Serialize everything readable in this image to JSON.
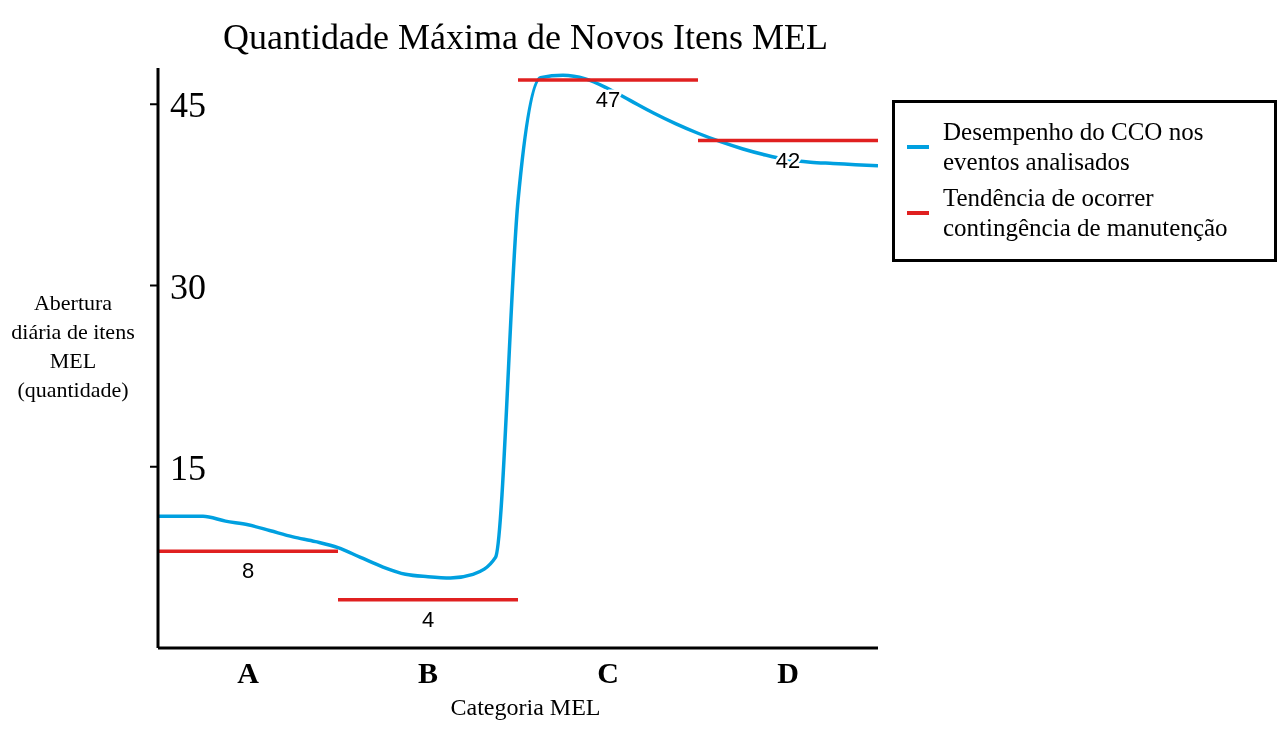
{
  "chart_data": {
    "type": "line",
    "title": "Quantidade Máxima de Novos Itens MEL",
    "xlabel": "Categoria MEL",
    "ylabel": "Abertura diária de itens MEL (quantidade)",
    "categories": [
      null,
      null,
      null,
      null,
      "A",
      null,
      null,
      null,
      null,
      null,
      null,
      null,
      "B",
      null,
      null,
      null,
      null,
      null,
      null,
      null,
      "C",
      null,
      null,
      null,
      null,
      null,
      null,
      null,
      "D",
      null,
      null,
      null,
      null
    ],
    "ylim": [
      0,
      48
    ],
    "yticks": [
      15,
      30,
      45
    ],
    "grid": false,
    "legend": "right",
    "series": [
      {
        "name": "Desempenho do CCO nos eventos analisados",
        "color": "#00a0e0",
        "values": [
          10.9,
          10.9,
          10.9,
          10.5,
          10.2,
          9.7,
          9.2,
          8.8,
          8.3,
          7.5,
          6.7,
          6.1,
          5.9,
          5.8,
          6.1,
          7.5,
          37,
          47.2,
          47.4,
          47.1,
          46.3,
          45.3,
          44.3,
          43.4,
          42.6,
          41.9,
          41.3,
          40.8,
          40.4,
          40.2,
          40.1,
          40.0,
          39.9
        ]
      },
      {
        "name": "Tendência de ocorrer contingência de manutenção",
        "color": "#e02020",
        "values": [
          8,
          8,
          8,
          8,
          8,
          8,
          8,
          8,
          8,
          null,
          null,
          null,
          null,
          null,
          null,
          null,
          null,
          null,
          null,
          null,
          null,
          null,
          null,
          null,
          null,
          null,
          null,
          null,
          null,
          null,
          null,
          null,
          null
        ],
        "value_labels": [
          null,
          null,
          null,
          null,
          "8",
          null,
          null,
          null,
          null,
          null,
          null,
          null,
          null,
          null,
          null,
          null,
          null,
          null,
          null,
          null,
          null,
          null,
          null,
          null,
          null,
          null,
          null,
          null,
          null,
          null,
          null,
          null,
          null
        ]
      },
      {
        "color": "#e02020",
        "values": [
          null,
          null,
          null,
          null,
          null,
          null,
          null,
          null,
          4,
          4,
          4,
          4,
          4,
          4,
          4,
          4,
          4,
          null,
          null,
          null,
          null,
          null,
          null,
          null,
          null,
          null,
          null,
          null,
          null,
          null,
          null,
          null,
          null
        ],
        "value_labels": [
          null,
          null,
          null,
          null,
          null,
          null,
          null,
          null,
          null,
          null,
          null,
          null,
          "4",
          null,
          null,
          null,
          null,
          null,
          null,
          null,
          null,
          null,
          null,
          null,
          null,
          null,
          null,
          null,
          null,
          null,
          null,
          null,
          null
        ]
      },
      {
        "color": "#e02020",
        "values": [
          null,
          null,
          null,
          null,
          null,
          null,
          null,
          null,
          null,
          null,
          null,
          null,
          null,
          null,
          null,
          null,
          47,
          47,
          47,
          47,
          47,
          47,
          47,
          47,
          47,
          null,
          null,
          null,
          null,
          null,
          null,
          null,
          null
        ],
        "value_labels": [
          null,
          null,
          null,
          null,
          null,
          null,
          null,
          null,
          null,
          null,
          null,
          null,
          null,
          null,
          null,
          null,
          null,
          null,
          null,
          null,
          "47",
          null,
          null,
          null,
          null,
          null,
          null,
          null,
          null,
          null,
          null,
          null,
          null
        ]
      },
      {
        "color": "#e02020",
        "values": [
          null,
          null,
          null,
          null,
          null,
          null,
          null,
          null,
          null,
          null,
          null,
          null,
          null,
          null,
          null,
          null,
          null,
          null,
          null,
          null,
          null,
          null,
          null,
          null,
          42,
          42,
          42,
          42,
          42,
          42,
          42,
          42,
          42
        ],
        "value_labels": [
          null,
          null,
          null,
          null,
          null,
          null,
          null,
          null,
          null,
          null,
          null,
          null,
          null,
          null,
          null,
          null,
          null,
          null,
          null,
          null,
          null,
          null,
          null,
          null,
          null,
          null,
          null,
          null,
          "42",
          null,
          null,
          null,
          null
        ]
      }
    ]
  }
}
